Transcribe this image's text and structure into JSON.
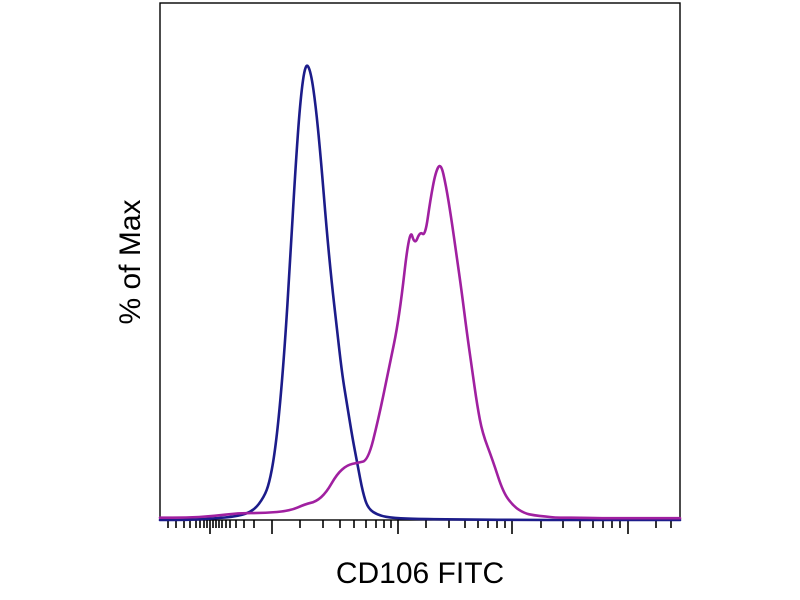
{
  "chart_data": {
    "type": "line",
    "xlabel": "CD106 FITC",
    "ylabel": "% of Max",
    "title": "",
    "x_scale": "biexponential (unlabeled)",
    "ylim": [
      0,
      100
    ],
    "grid": false,
    "legend": "none",
    "series": [
      {
        "color": "#1c1c8a",
        "x": [
          0.0,
          0.05,
          0.1,
          0.15,
          0.18,
          0.2,
          0.21,
          0.22,
          0.23,
          0.24,
          0.25,
          0.26,
          0.27,
          0.28,
          0.29,
          0.3,
          0.31,
          0.32,
          0.33,
          0.34,
          0.35,
          0.36,
          0.37,
          0.38,
          0.39,
          0.4,
          0.42,
          0.45,
          0.5,
          0.6,
          0.7,
          0.8,
          0.9,
          1.0
        ],
        "y": [
          0,
          0,
          0.3,
          0.8,
          2,
          5,
          8,
          14,
          24,
          38,
          56,
          76,
          92,
          100,
          98,
          90,
          78,
          64,
          52,
          42,
          32,
          25,
          18,
          12,
          6,
          2.5,
          1,
          0.4,
          0.2,
          0.1,
          0,
          0,
          0,
          0
        ]
      },
      {
        "color": "#a020a0",
        "x": [
          0.0,
          0.05,
          0.1,
          0.15,
          0.2,
          0.25,
          0.28,
          0.3,
          0.32,
          0.34,
          0.36,
          0.38,
          0.4,
          0.42,
          0.44,
          0.46,
          0.48,
          0.49,
          0.5,
          0.51,
          0.52,
          0.53,
          0.54,
          0.55,
          0.56,
          0.57,
          0.58,
          0.59,
          0.6,
          0.61,
          0.62,
          0.64,
          0.66,
          0.68,
          0.7,
          0.72,
          0.74,
          0.76,
          0.78,
          0.8,
          0.85,
          0.9,
          1.0
        ],
        "y": [
          0.5,
          0.5,
          0.8,
          1.5,
          1.5,
          2,
          3.5,
          4,
          6,
          10,
          12,
          12.5,
          13,
          22,
          33,
          44,
          64,
          60,
          63,
          62,
          70,
          76,
          78,
          73,
          66,
          58,
          50,
          41,
          33,
          25,
          19,
          13,
          6,
          3,
          1.5,
          1,
          0.8,
          0.5,
          0.5,
          0.5,
          0.4,
          0.4,
          0.4
        ]
      }
    ]
  }
}
